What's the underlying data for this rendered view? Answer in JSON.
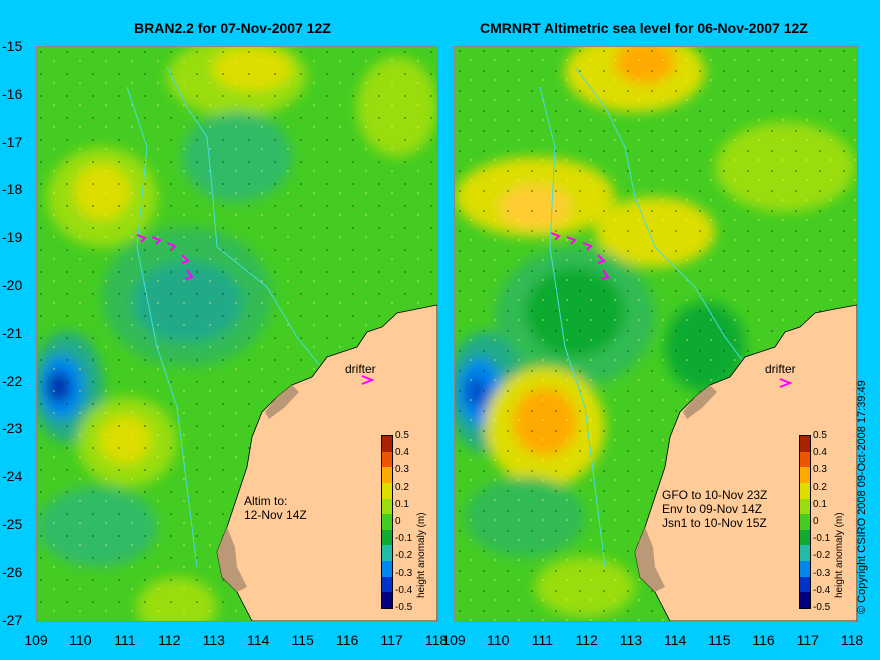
{
  "titles": {
    "left": "BRAN2.2 for 07-Nov-2007 12Z",
    "right": "CMRNRT Altimetric sea level  for 06-Nov-2007 12Z"
  },
  "y_ticks": [
    "-15",
    "-16",
    "-17",
    "-18",
    "-19",
    "-20",
    "-21",
    "-22",
    "-23",
    "-24",
    "-25",
    "-26",
    "-27"
  ],
  "x_ticks_left": [
    "109",
    "110",
    "111",
    "112",
    "113",
    "114",
    "115",
    "116",
    "117",
    "118"
  ],
  "x_ticks_right": [
    "109",
    "110",
    "111",
    "112",
    "113",
    "114",
    "115",
    "116",
    "117",
    "118"
  ],
  "drifter_label": "drifter",
  "notes": {
    "left": "Altim to:\n12-Nov 14Z",
    "right": "GFO to 10-Nov 23Z\nEnv to 09-Nov 14Z\nJsn1 to 10-Nov 15Z"
  },
  "colorbar": {
    "title": "height anomaly (m)",
    "labels": [
      "0.5",
      "0.4",
      "0.3",
      "0.2",
      "0.1",
      "0",
      "-0.1",
      "-0.2",
      "-0.3",
      "-0.4",
      "-0.5"
    ],
    "colors": [
      "#000080",
      "#0033cc",
      "#0088ee",
      "#22bbaa",
      "#11aa33",
      "#44cc22",
      "#99dd11",
      "#dddd00",
      "#ffaa00",
      "#ee5500",
      "#aa2200"
    ]
  },
  "copyright": "© Copyright CSIRO 2008   09-Oct-2008 17:39:49",
  "colors": {
    "background": "#00ccff",
    "land": "#ffcc99",
    "coast_fringe": "#bb9977",
    "drifter": "#ff00ff"
  }
}
